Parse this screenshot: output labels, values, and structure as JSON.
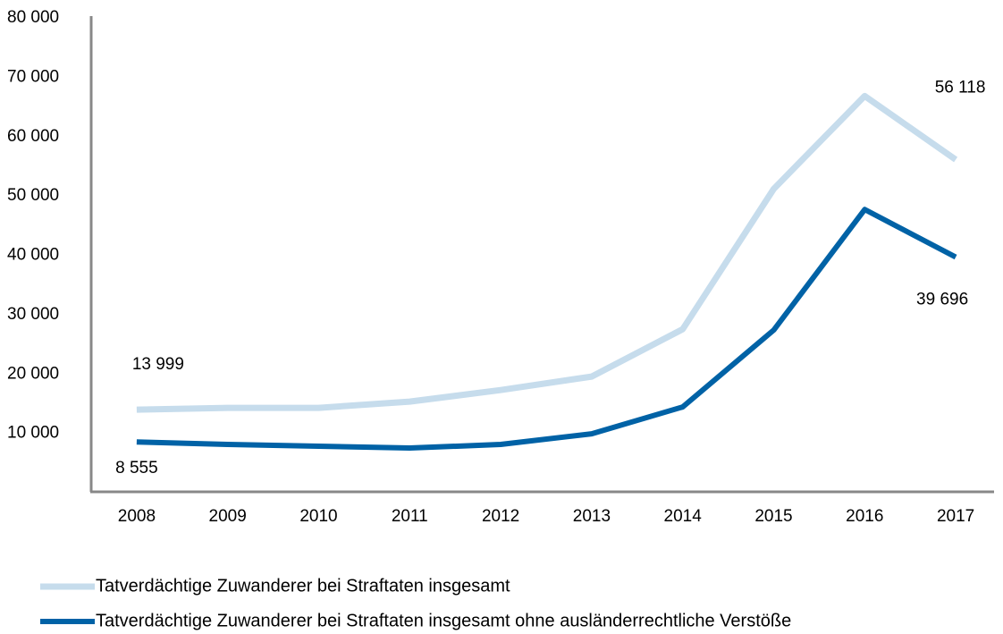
{
  "chart_data": {
    "type": "line",
    "categories": [
      "2008",
      "2009",
      "2010",
      "2011",
      "2012",
      "2013",
      "2014",
      "2015",
      "2016",
      "2017"
    ],
    "series": [
      {
        "name": "Tatverdächtige Zuwanderer bei Straftaten insgesamt",
        "color": "#c6dcec",
        "values": [
          13999,
          14300,
          14300,
          15350,
          17300,
          19570,
          27550,
          51180,
          66840,
          56118
        ],
        "value_labels": [
          "13 999",
          null,
          null,
          null,
          null,
          null,
          null,
          null,
          null,
          "56 118"
        ]
      },
      {
        "name": "Tatverdächtige Zuwanderer bei Straftaten insgesamt ohne ausländerrechtliche Verstöße",
        "color": "#0062a6",
        "values": [
          8555,
          8130,
          7830,
          7530,
          8130,
          9930,
          14450,
          27400,
          47720,
          39696
        ],
        "value_labels": [
          "8 555",
          null,
          null,
          null,
          null,
          null,
          null,
          null,
          null,
          "39 696"
        ]
      }
    ],
    "ylim": [
      0,
      80000
    ],
    "yticks": [
      {
        "value": 10000,
        "label": "10 000"
      },
      {
        "value": 20000,
        "label": "20 000"
      },
      {
        "value": 30000,
        "label": "30 000"
      },
      {
        "value": 40000,
        "label": "40 000"
      },
      {
        "value": 50000,
        "label": "50 000"
      },
      {
        "value": 60000,
        "label": "60 000"
      },
      {
        "value": 70000,
        "label": "70 000"
      },
      {
        "value": 80000,
        "label": "80 000"
      }
    ],
    "grid": false,
    "legend": "bottom"
  }
}
